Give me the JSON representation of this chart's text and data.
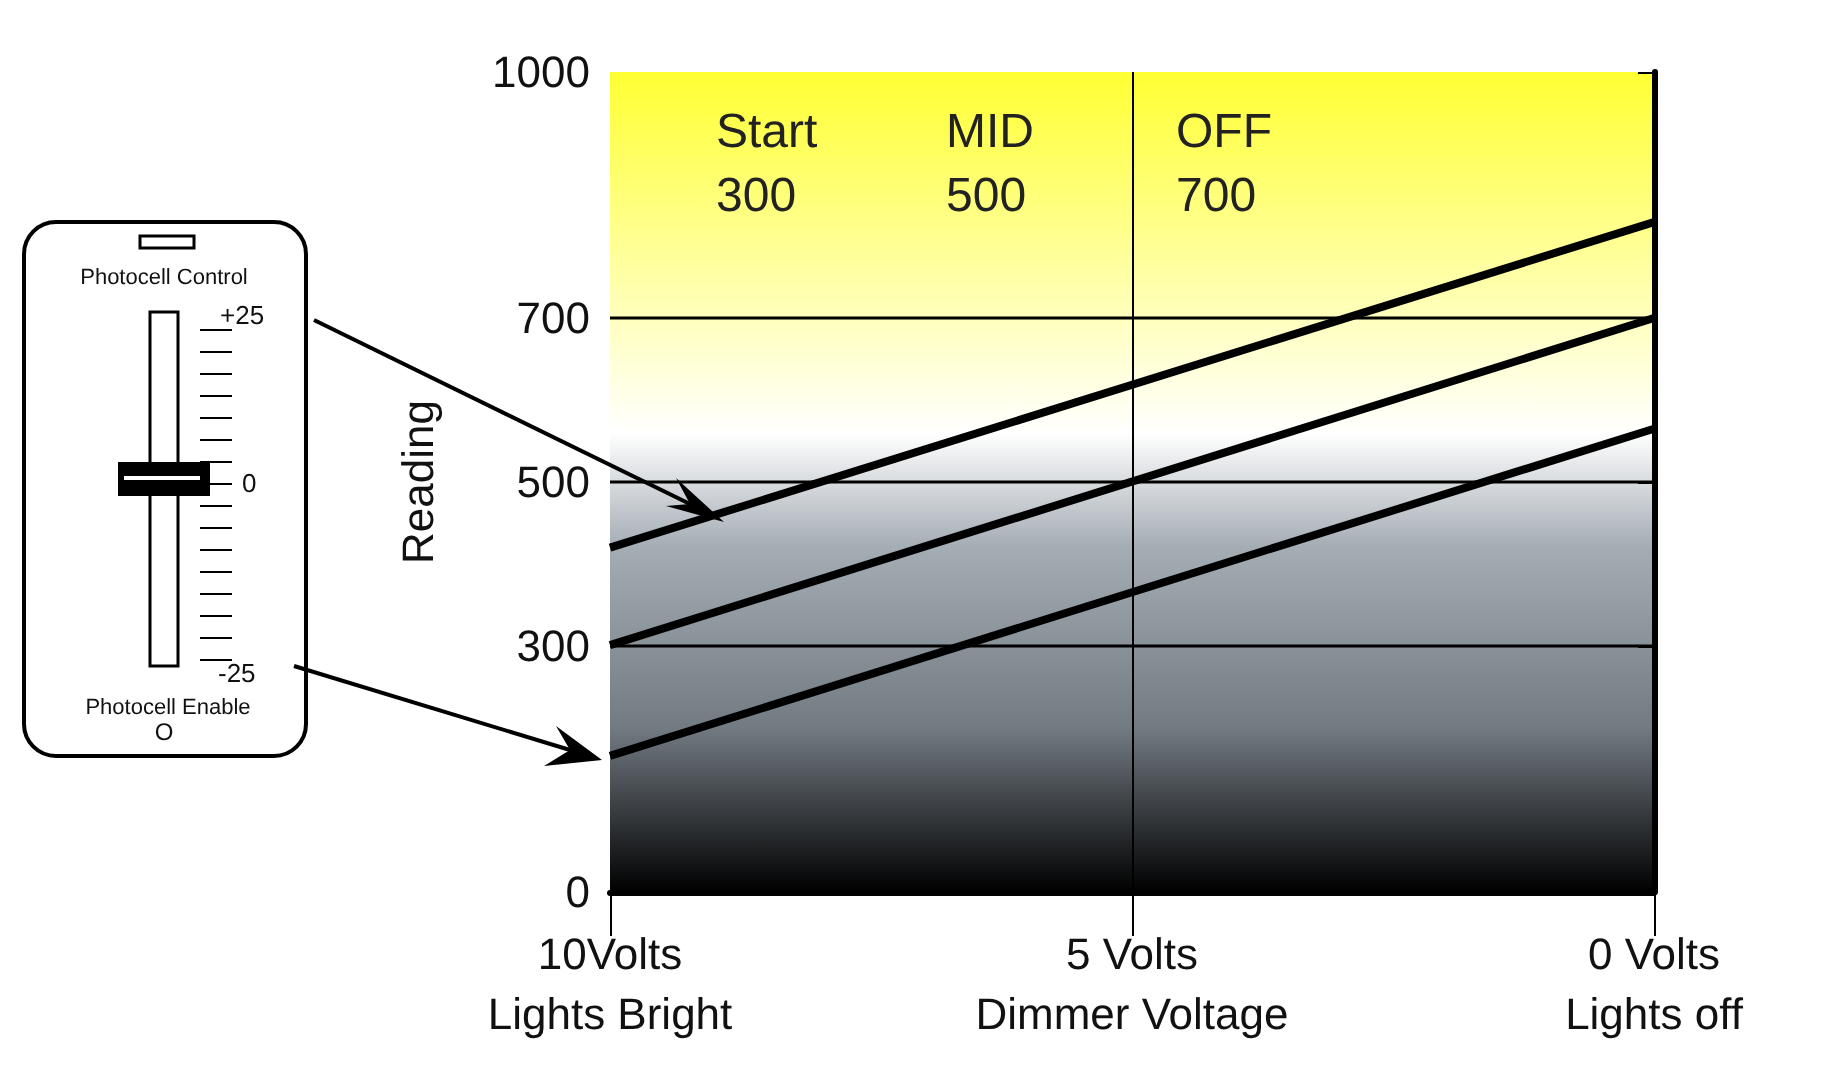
{
  "chart_data": {
    "type": "line",
    "ylabel": "Reading",
    "x": [
      10,
      0
    ],
    "series": [
      {
        "color": "#000000",
        "values": [
          420,
          817
        ]
      },
      {
        "color": "#000000",
        "values": [
          301,
          700
        ]
      },
      {
        "color": "#000000",
        "values": [
          166,
          565
        ]
      }
    ],
    "xlim": [
      10,
      0
    ],
    "xticks": [
      {
        "value": 10,
        "label": "10Volts\nLights Bright"
      },
      {
        "value": 5,
        "label": "5 Volts\nDimmer Voltage"
      },
      {
        "value": 0,
        "label": "0 Volts\nLights off"
      }
    ],
    "ylim": [
      0,
      1000
    ],
    "yticks": [
      0,
      300,
      500,
      700,
      1000
    ],
    "ref_lines": [
      {
        "axis": "y",
        "value": 700,
        "label": null
      },
      {
        "axis": "y",
        "value": 500,
        "label": null
      },
      {
        "axis": "y",
        "value": 300,
        "label": null
      },
      {
        "axis": "x",
        "value": 5,
        "label": null
      }
    ],
    "annotations": [
      "Start\n300",
      "MID\n500",
      "OFF\n700",
      "Photocell Control",
      "+25",
      "0",
      "-25",
      "Photocell Enable",
      "O"
    ],
    "marker": "none",
    "line_style": "solid",
    "grid": false
  }
}
